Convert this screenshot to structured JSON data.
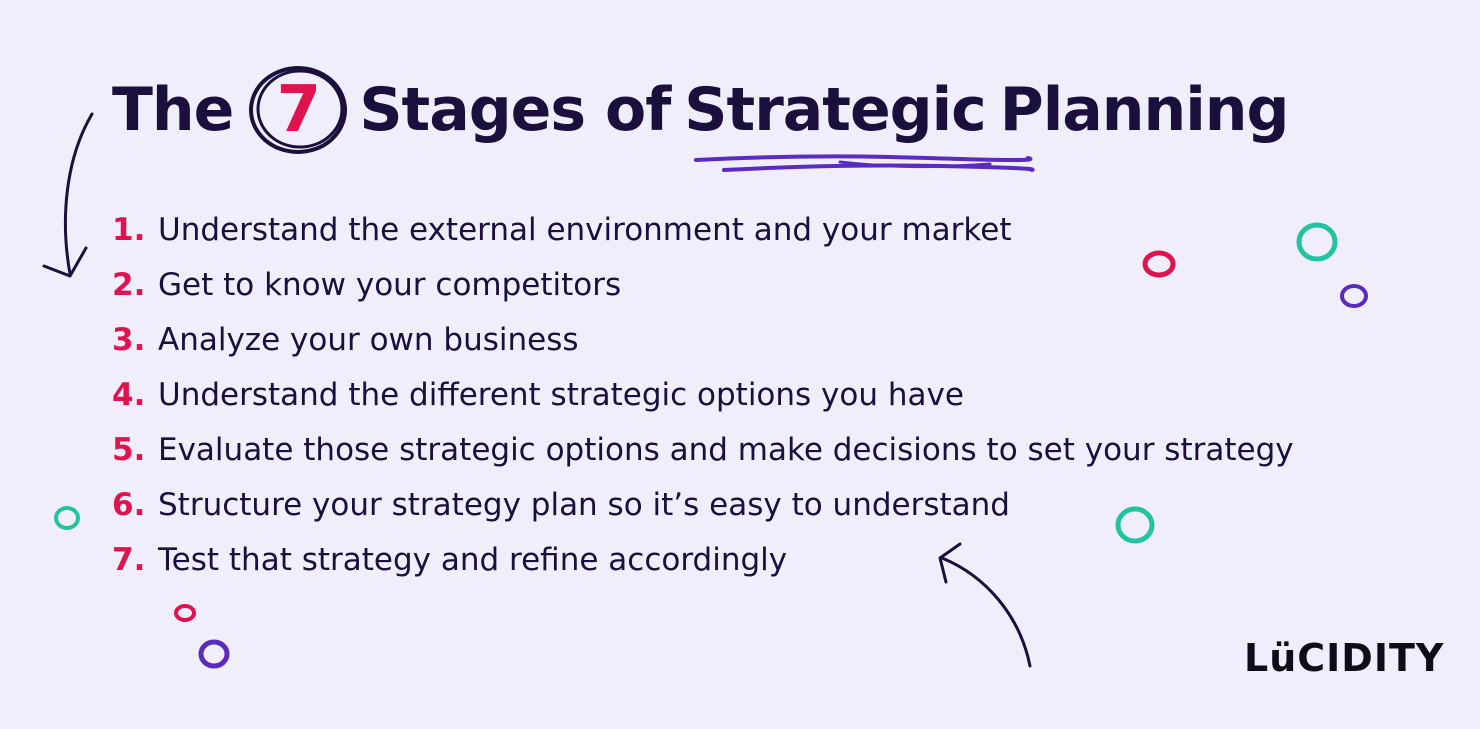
{
  "title": {
    "prefix": "The",
    "number": "7",
    "suffix": "Stages of",
    "highlight": "Strategic",
    "end": "Planning"
  },
  "stages": [
    {
      "num": "1.",
      "text": "Understand the external environment and your market"
    },
    {
      "num": "2.",
      "text": "Get to know your competitors"
    },
    {
      "num": "3.",
      "text": "Analyze your own business"
    },
    {
      "num": "4.",
      "text": "Understand the different strategic options you have"
    },
    {
      "num": "5.",
      "text": "Evaluate those strategic options and make decisions to set your strategy"
    },
    {
      "num": "6.",
      "text": "Structure your strategy plan so it’s easy to understand"
    },
    {
      "num": "7.",
      "text": "Test that strategy and refine accordingly"
    }
  ],
  "logo": "LüCIDITY",
  "colors": {
    "background": "#f1eefb",
    "text": "#1a0f3d",
    "accent_pink": "#e0134e",
    "accent_purple": "#5a2bbf",
    "accent_teal": "#21c4a0"
  },
  "icons": [
    "curved-arrow-down-left-icon",
    "curved-arrow-up-left-icon",
    "circle-decoration-icon"
  ]
}
